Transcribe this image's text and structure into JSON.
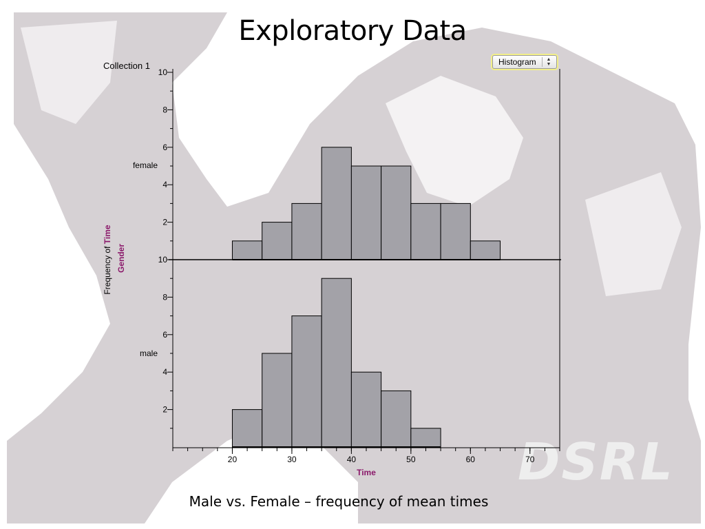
{
  "slide": {
    "title": "Exploratory Data",
    "caption": "Male vs. Female – frequency of mean times",
    "watermark": "DSRL"
  },
  "app": {
    "collection_label": "Collection 1",
    "chart_type": "Histogram"
  },
  "colors": {
    "bar_fill": "#a3a2a8",
    "bar_stroke": "#000000",
    "axis_title": "#8b1a6b",
    "background_shape": "#d6d1d4"
  },
  "chart_data": {
    "type": "bar",
    "subtype": "histogram",
    "x_attribute": "Time",
    "split_attribute": "Gender",
    "xlabel": "Time",
    "ylabel_prefix": "Frequency of ",
    "ylabel_attribute": "Time",
    "split_label": "Gender",
    "xlim": [
      10,
      75
    ],
    "x_ticks": [
      20,
      30,
      40,
      50,
      60,
      70
    ],
    "bin_width": 5,
    "panels": [
      {
        "name": "female",
        "ylim": [
          0,
          10
        ],
        "y_ticks": [
          2,
          4,
          6,
          8,
          10
        ],
        "bins": [
          {
            "x0": 20,
            "x1": 25,
            "count": 1
          },
          {
            "x0": 25,
            "x1": 30,
            "count": 2
          },
          {
            "x0": 30,
            "x1": 35,
            "count": 3
          },
          {
            "x0": 35,
            "x1": 40,
            "count": 6
          },
          {
            "x0": 40,
            "x1": 45,
            "count": 5
          },
          {
            "x0": 45,
            "x1": 50,
            "count": 5
          },
          {
            "x0": 50,
            "x1": 55,
            "count": 3
          },
          {
            "x0": 55,
            "x1": 60,
            "count": 3
          },
          {
            "x0": 60,
            "x1": 65,
            "count": 1
          }
        ]
      },
      {
        "name": "male",
        "ylim": [
          0,
          10
        ],
        "y_ticks": [
          2,
          4,
          6,
          8,
          10
        ],
        "bins": [
          {
            "x0": 20,
            "x1": 25,
            "count": 2
          },
          {
            "x0": 25,
            "x1": 30,
            "count": 5
          },
          {
            "x0": 30,
            "x1": 35,
            "count": 7
          },
          {
            "x0": 35,
            "x1": 40,
            "count": 9
          },
          {
            "x0": 40,
            "x1": 45,
            "count": 4
          },
          {
            "x0": 45,
            "x1": 50,
            "count": 3
          },
          {
            "x0": 50,
            "x1": 55,
            "count": 1
          }
        ]
      }
    ]
  }
}
